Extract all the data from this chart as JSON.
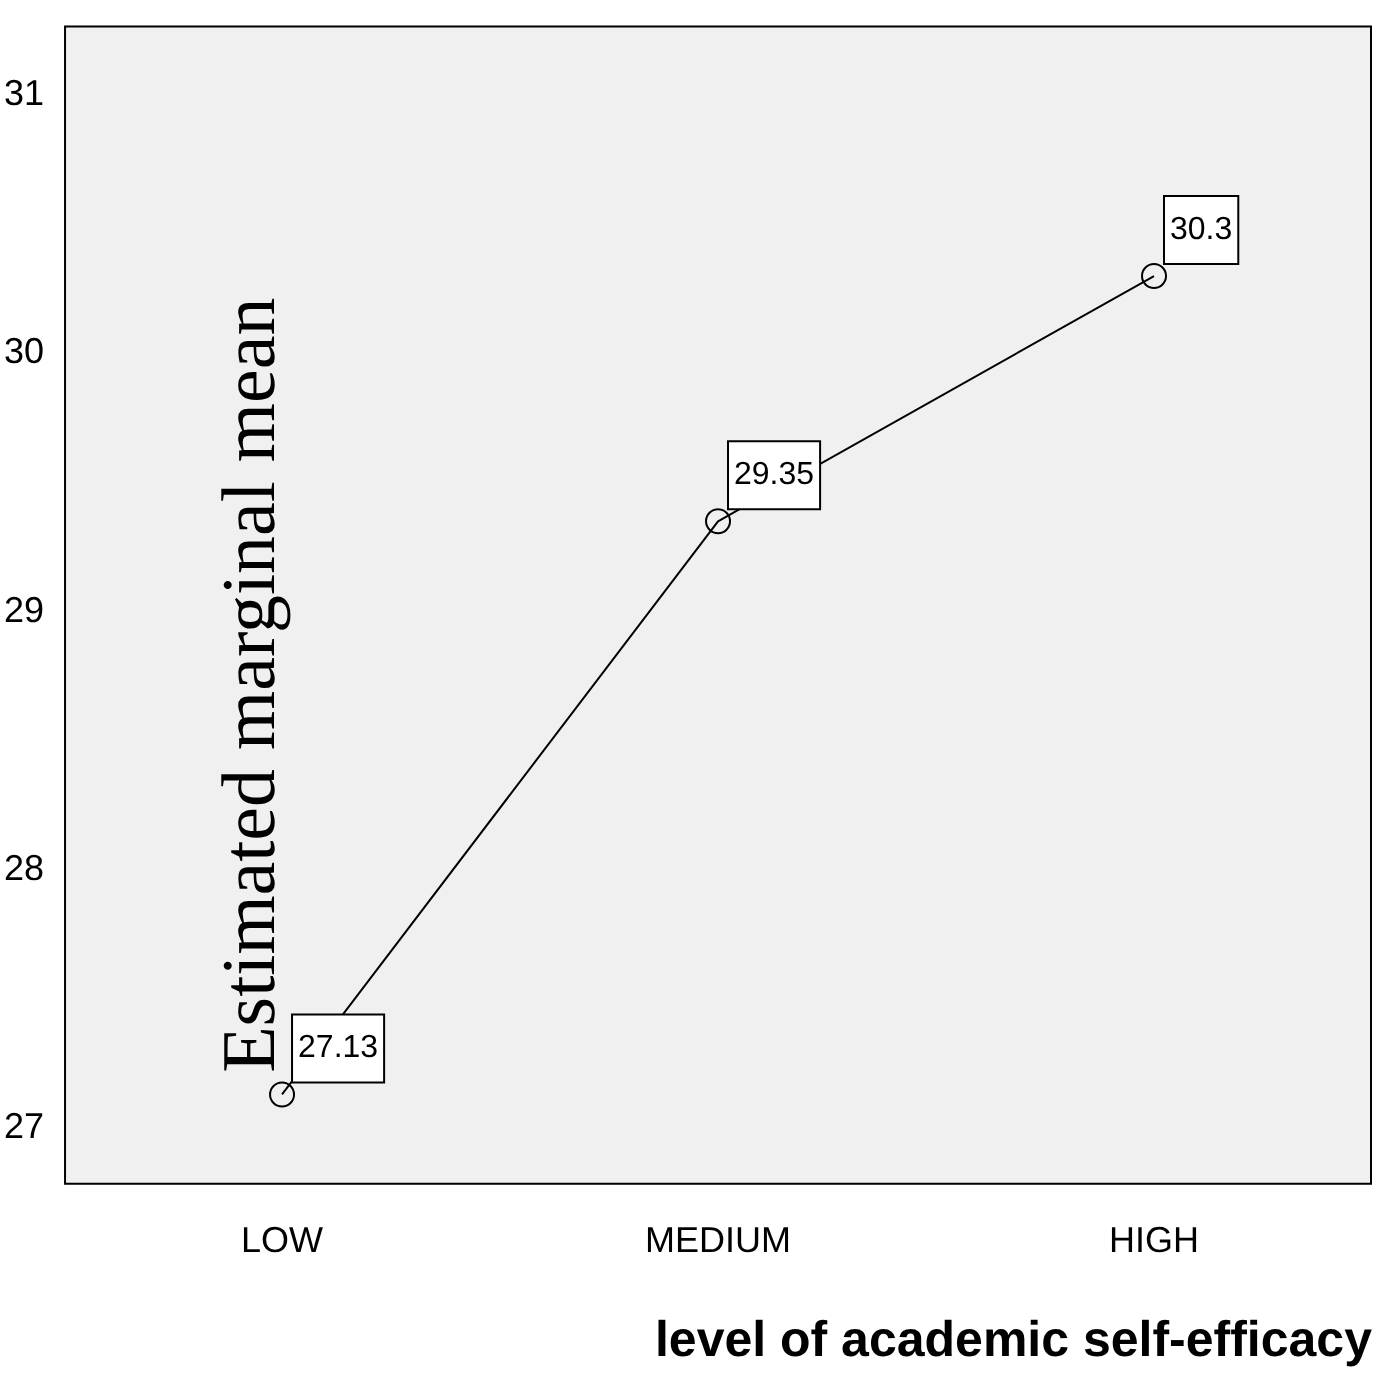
{
  "chart_data": {
    "type": "line",
    "xlabel": "level of academic self-efficacy",
    "ylabel": "Estimated marginal mean",
    "categories": [
      "LOW",
      "MEDIUM",
      "HIGH"
    ],
    "series": [
      {
        "color": "#000000",
        "values": [
          27.13,
          29.35,
          30.3
        ]
      }
    ],
    "ylim": [
      26.78,
      31.27
    ],
    "yticks": [
      27,
      28,
      29,
      30,
      31
    ],
    "grid": false,
    "legend": false,
    "marker": "circle",
    "line_style": "solid",
    "data_labels": true
  }
}
